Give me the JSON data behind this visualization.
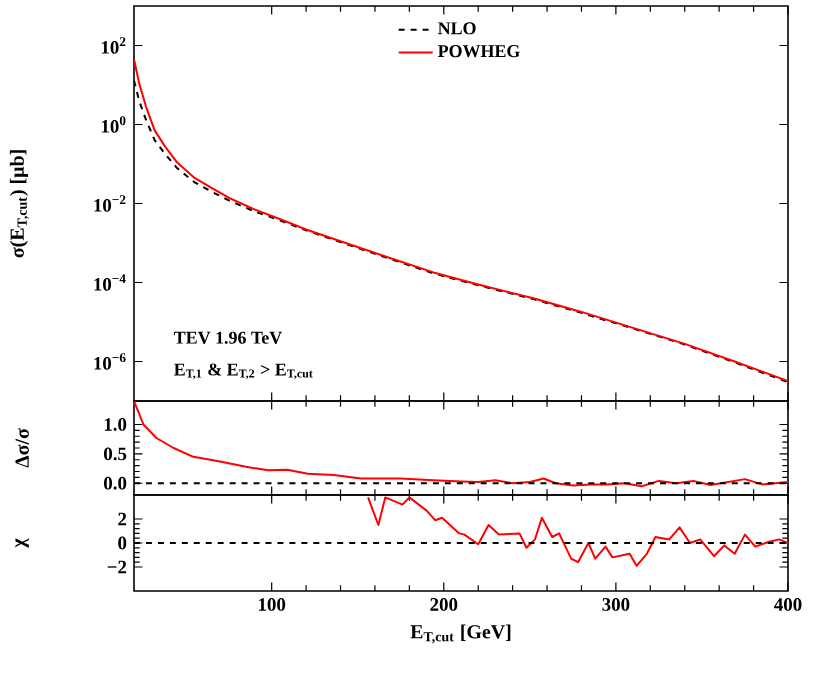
{
  "chart_data": [
    {
      "type": "line",
      "ylabel": "σ(E$_{T,cut}$) [μb]",
      "log": "y",
      "xlim": [
        20,
        400
      ],
      "ylim": [
        1e-07,
        1000
      ],
      "xticks": [
        100,
        200,
        300,
        400
      ],
      "yticks": [
        {
          "value": 1e-06,
          "label": "10$^{−6}$"
        },
        {
          "value": 0.0001,
          "label": "10$^{−4}$"
        },
        {
          "value": 0.01,
          "label": "10$^{−2}$"
        },
        {
          "value": 1,
          "label": "10$^{0}$"
        },
        {
          "value": 100,
          "label": "10$^{2}$"
        }
      ],
      "tick_labels": "y",
      "legend": "top",
      "x": [
        20,
        23,
        27,
        32,
        38,
        45,
        55,
        65,
        75,
        90,
        105,
        120,
        143,
        170,
        194,
        220,
        252,
        280,
        310,
        340,
        369,
        400
      ],
      "series": [
        {
          "name": "NLO",
          "color": "#000000",
          "line_style": "dashed",
          "values": [
            13,
            4,
            1.3,
            0.4,
            0.18,
            0.079,
            0.035,
            0.02,
            0.012,
            0.0063,
            0.0037,
            0.0021,
            0.00095,
            0.00038,
            0.00017,
            8.5e-05,
            3.8e-05,
            1.7e-05,
            6.8e-06,
            2.7e-06,
            9.5e-07,
            3e-07
          ]
        },
        {
          "name": "POWHEG",
          "color": "#ff0000",
          "line_style": "solid",
          "values": [
            45,
            11,
            2.8,
            0.71,
            0.28,
            0.11,
            0.045,
            0.025,
            0.014,
            0.0071,
            0.004,
            0.0022,
            0.001,
            0.0004,
            0.00018,
            8.9e-05,
            4e-05,
            1.8e-05,
            7.1e-06,
            2.8e-06,
            1e-06,
            3.2e-07
          ]
        }
      ],
      "annotations": [
        "TEV 1.96 TeV",
        "E$_{T,1}$ & E$_{T,2}$ > E$_{T,cut}$"
      ]
    },
    {
      "type": "line",
      "ylabel": "Δσ/σ",
      "xlim": [
        20,
        400
      ],
      "ylim": [
        -0.2,
        1.4
      ],
      "xticks": [
        100,
        200,
        300,
        400
      ],
      "yticks": [
        {
          "value": 0,
          "label": "0.0"
        },
        {
          "value": 0.5,
          "label": "0.5"
        },
        {
          "value": 1,
          "label": "1.0"
        }
      ],
      "tick_labels": "y",
      "ref_lines": [
        {
          "axis": "y",
          "value": 0,
          "color": "#000000",
          "line_style": "dashed"
        }
      ],
      "series": [
        {
          "color": "#ff0000",
          "line_style": "solid",
          "x": [
            20,
            25.5,
            33,
            43,
            54.5,
            70,
            85,
            98,
            109,
            121,
            136,
            152,
            175,
            194,
            210,
            220,
            230,
            240,
            250,
            258,
            265,
            275,
            285,
            295,
            305,
            315,
            325,
            335,
            345,
            355,
            365,
            375,
            385,
            400
          ],
          "values": [
            1.4,
            1.0,
            0.77,
            0.6,
            0.45,
            0.37,
            0.28,
            0.22,
            0.23,
            0.16,
            0.14,
            0.08,
            0.08,
            0.05,
            0.03,
            0.02,
            0.05,
            0.0,
            0.02,
            0.08,
            0.0,
            -0.04,
            -0.02,
            -0.02,
            0.0,
            -0.05,
            0.04,
            0.0,
            0.04,
            -0.03,
            0.02,
            0.07,
            -0.02,
            0.02
          ]
        }
      ]
    },
    {
      "type": "line",
      "ylabel": "χ",
      "xlabel": "E$_{T,cut}$ [GeV]",
      "xlim": [
        20,
        400
      ],
      "ylim": [
        -4,
        4
      ],
      "xticks": [
        100,
        200,
        300,
        400
      ],
      "yticks": [
        {
          "value": -2,
          "label": "−2"
        },
        0,
        2
      ],
      "ref_lines": [
        {
          "axis": "y",
          "value": 0,
          "color": "#000000",
          "line_style": "dashed"
        }
      ],
      "series": [
        {
          "color": "#ff0000",
          "line_style": "solid",
          "x": [
            156,
            162,
            166,
            176,
            180,
            190,
            195,
            199,
            209,
            212,
            220,
            226,
            232,
            244,
            248,
            253,
            257,
            263,
            267,
            274,
            278,
            284,
            288,
            294,
            298,
            308,
            312,
            318,
            323,
            331,
            337,
            343,
            349,
            357,
            363,
            369,
            375,
            381,
            389,
            395,
            400
          ],
          "values": [
            3.8,
            1.5,
            3.8,
            3.2,
            3.8,
            2.7,
            1.9,
            2.1,
            0.8,
            0.7,
            -0.1,
            1.5,
            0.7,
            0.8,
            -0.4,
            0.3,
            2.1,
            0.5,
            0.8,
            -1.3,
            -1.6,
            0,
            -1.3,
            -0.3,
            -1.2,
            -0.9,
            -1.9,
            -0.9,
            0.5,
            0.3,
            1.3,
            0,
            0.3,
            -1.1,
            -0.2,
            -0.9,
            0.7,
            -0.3,
            0.1,
            0.3,
            0
          ]
        }
      ]
    }
  ]
}
